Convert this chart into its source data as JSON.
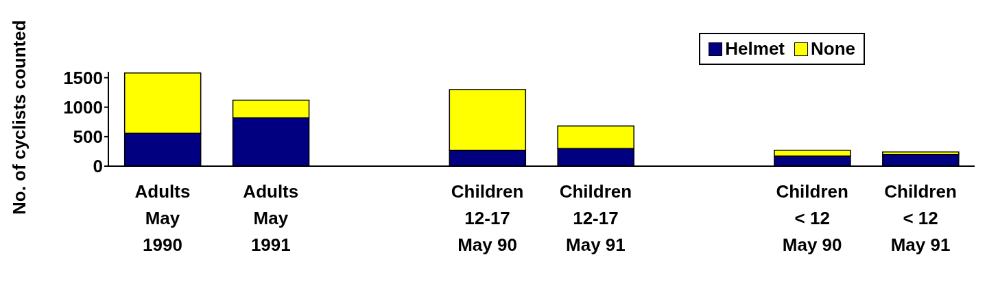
{
  "chart_data": {
    "type": "bar",
    "stacked": true,
    "ylabel": "No. of cyclists counted",
    "categories": [
      "Adults\nMay\n1990",
      "Adults\nMay\n1991",
      null,
      "Children\n12-17\nMay 90",
      "Children\n12-17\nMay 91",
      null,
      "Children\n< 12\nMay 90",
      "Children\n< 12\nMay 91"
    ],
    "series": [
      {
        "name": "Helmet",
        "color": "#000080",
        "values": [
          560,
          820,
          null,
          270,
          300,
          null,
          170,
          200
        ]
      },
      {
        "name": "None",
        "color": "#ffff00",
        "values": [
          1020,
          300,
          null,
          1030,
          380,
          null,
          100,
          40
        ]
      }
    ],
    "ylim": [
      0,
      1600
    ],
    "yticks": [
      0,
      500,
      1000,
      1500
    ],
    "grid": false,
    "legend": "top right"
  }
}
